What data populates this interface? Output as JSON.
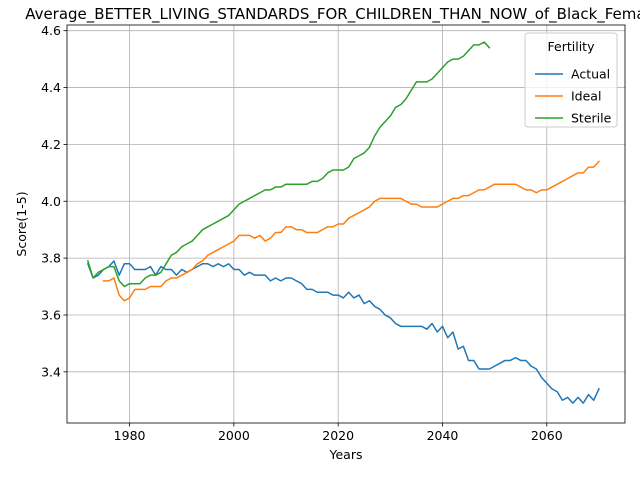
{
  "chart_data": {
    "type": "line",
    "title": "Average_BETTER_LIVING_STANDARDS_FOR_CHILDREN_THAN_NOW_of_Black_Females",
    "xlabel": "Years",
    "ylabel": "Score(1-5)",
    "xlim": [
      1968,
      2075
    ],
    "ylim": [
      3.22,
      4.62
    ],
    "xticks": [
      1980,
      2000,
      2020,
      2040,
      2060
    ],
    "yticks": [
      3.4,
      3.6,
      3.8,
      4.0,
      4.2,
      4.4,
      4.6
    ],
    "grid": true,
    "legend": {
      "title": "Fertility",
      "placement": "upper-right"
    },
    "series": [
      {
        "name": "Actual",
        "color": "#1f77b4",
        "points": [
          [
            1972,
            3.78
          ],
          [
            1973,
            3.73
          ],
          [
            1974,
            3.74
          ],
          [
            1975,
            3.76
          ],
          [
            1976,
            3.77
          ],
          [
            1977,
            3.79
          ],
          [
            1978,
            3.74
          ],
          [
            1979,
            3.78
          ],
          [
            1980,
            3.78
          ],
          [
            1981,
            3.76
          ],
          [
            1982,
            3.76
          ],
          [
            1983,
            3.76
          ],
          [
            1984,
            3.77
          ],
          [
            1985,
            3.74
          ],
          [
            1986,
            3.77
          ],
          [
            1987,
            3.76
          ],
          [
            1988,
            3.76
          ],
          [
            1989,
            3.74
          ],
          [
            1990,
            3.76
          ],
          [
            1991,
            3.75
          ],
          [
            1992,
            3.76
          ],
          [
            1993,
            3.77
          ],
          [
            1994,
            3.78
          ],
          [
            1995,
            3.78
          ],
          [
            1996,
            3.77
          ],
          [
            1997,
            3.78
          ],
          [
            1998,
            3.77
          ],
          [
            1999,
            3.78
          ],
          [
            2000,
            3.76
          ],
          [
            2001,
            3.76
          ],
          [
            2002,
            3.74
          ],
          [
            2003,
            3.75
          ],
          [
            2004,
            3.74
          ],
          [
            2005,
            3.74
          ],
          [
            2006,
            3.74
          ],
          [
            2007,
            3.72
          ],
          [
            2008,
            3.73
          ],
          [
            2009,
            3.72
          ],
          [
            2010,
            3.73
          ],
          [
            2011,
            3.73
          ],
          [
            2012,
            3.72
          ],
          [
            2013,
            3.71
          ],
          [
            2014,
            3.69
          ],
          [
            2015,
            3.69
          ],
          [
            2016,
            3.68
          ],
          [
            2017,
            3.68
          ],
          [
            2018,
            3.68
          ],
          [
            2019,
            3.67
          ],
          [
            2020,
            3.67
          ],
          [
            2021,
            3.66
          ],
          [
            2022,
            3.68
          ],
          [
            2023,
            3.66
          ],
          [
            2024,
            3.67
          ],
          [
            2025,
            3.64
          ],
          [
            2026,
            3.65
          ],
          [
            2027,
            3.63
          ],
          [
            2028,
            3.62
          ],
          [
            2029,
            3.6
          ],
          [
            2030,
            3.59
          ],
          [
            2031,
            3.57
          ],
          [
            2032,
            3.56
          ],
          [
            2033,
            3.56
          ],
          [
            2034,
            3.56
          ],
          [
            2035,
            3.56
          ],
          [
            2036,
            3.56
          ],
          [
            2037,
            3.55
          ],
          [
            2038,
            3.57
          ],
          [
            2039,
            3.54
          ],
          [
            2040,
            3.56
          ],
          [
            2041,
            3.52
          ],
          [
            2042,
            3.54
          ],
          [
            2043,
            3.48
          ],
          [
            2044,
            3.49
          ],
          [
            2045,
            3.44
          ],
          [
            2046,
            3.44
          ],
          [
            2047,
            3.41
          ],
          [
            2048,
            3.41
          ],
          [
            2049,
            3.41
          ],
          [
            2050,
            3.42
          ],
          [
            2051,
            3.43
          ],
          [
            2052,
            3.44
          ],
          [
            2053,
            3.44
          ],
          [
            2054,
            3.45
          ],
          [
            2055,
            3.44
          ],
          [
            2056,
            3.44
          ],
          [
            2057,
            3.42
          ],
          [
            2058,
            3.41
          ],
          [
            2059,
            3.38
          ],
          [
            2060,
            3.36
          ],
          [
            2061,
            3.34
          ],
          [
            2062,
            3.33
          ],
          [
            2063,
            3.3
          ],
          [
            2064,
            3.31
          ],
          [
            2065,
            3.29
          ],
          [
            2066,
            3.31
          ],
          [
            2067,
            3.29
          ],
          [
            2068,
            3.32
          ],
          [
            2069,
            3.3
          ],
          [
            2070,
            3.34
          ]
        ]
      },
      {
        "name": "Ideal",
        "color": "#ff7f0e",
        "points": [
          [
            1975,
            3.72
          ],
          [
            1976,
            3.72
          ],
          [
            1977,
            3.73
          ],
          [
            1978,
            3.67
          ],
          [
            1979,
            3.65
          ],
          [
            1980,
            3.66
          ],
          [
            1981,
            3.69
          ],
          [
            1982,
            3.69
          ],
          [
            1983,
            3.69
          ],
          [
            1984,
            3.7
          ],
          [
            1985,
            3.7
          ],
          [
            1986,
            3.7
          ],
          [
            1987,
            3.72
          ],
          [
            1988,
            3.73
          ],
          [
            1989,
            3.73
          ],
          [
            1990,
            3.74
          ],
          [
            1991,
            3.75
          ],
          [
            1992,
            3.76
          ],
          [
            1993,
            3.78
          ],
          [
            1994,
            3.79
          ],
          [
            1995,
            3.81
          ],
          [
            1996,
            3.82
          ],
          [
            1997,
            3.83
          ],
          [
            1998,
            3.84
          ],
          [
            1999,
            3.85
          ],
          [
            2000,
            3.86
          ],
          [
            2001,
            3.88
          ],
          [
            2002,
            3.88
          ],
          [
            2003,
            3.88
          ],
          [
            2004,
            3.87
          ],
          [
            2005,
            3.88
          ],
          [
            2006,
            3.86
          ],
          [
            2007,
            3.87
          ],
          [
            2008,
            3.89
          ],
          [
            2009,
            3.89
          ],
          [
            2010,
            3.91
          ],
          [
            2011,
            3.91
          ],
          [
            2012,
            3.9
          ],
          [
            2013,
            3.9
          ],
          [
            2014,
            3.89
          ],
          [
            2015,
            3.89
          ],
          [
            2016,
            3.89
          ],
          [
            2017,
            3.9
          ],
          [
            2018,
            3.91
          ],
          [
            2019,
            3.91
          ],
          [
            2020,
            3.92
          ],
          [
            2021,
            3.92
          ],
          [
            2022,
            3.94
          ],
          [
            2023,
            3.95
          ],
          [
            2024,
            3.96
          ],
          [
            2025,
            3.97
          ],
          [
            2026,
            3.98
          ],
          [
            2027,
            4.0
          ],
          [
            2028,
            4.01
          ],
          [
            2029,
            4.01
          ],
          [
            2030,
            4.01
          ],
          [
            2031,
            4.01
          ],
          [
            2032,
            4.01
          ],
          [
            2033,
            4.0
          ],
          [
            2034,
            3.99
          ],
          [
            2035,
            3.99
          ],
          [
            2036,
            3.98
          ],
          [
            2037,
            3.98
          ],
          [
            2038,
            3.98
          ],
          [
            2039,
            3.98
          ],
          [
            2040,
            3.99
          ],
          [
            2041,
            4.0
          ],
          [
            2042,
            4.01
          ],
          [
            2043,
            4.01
          ],
          [
            2044,
            4.02
          ],
          [
            2045,
            4.02
          ],
          [
            2046,
            4.03
          ],
          [
            2047,
            4.04
          ],
          [
            2048,
            4.04
          ],
          [
            2049,
            4.05
          ],
          [
            2050,
            4.06
          ],
          [
            2051,
            4.06
          ],
          [
            2052,
            4.06
          ],
          [
            2053,
            4.06
          ],
          [
            2054,
            4.06
          ],
          [
            2055,
            4.05
          ],
          [
            2056,
            4.04
          ],
          [
            2057,
            4.04
          ],
          [
            2058,
            4.03
          ],
          [
            2059,
            4.04
          ],
          [
            2060,
            4.04
          ],
          [
            2061,
            4.05
          ],
          [
            2062,
            4.06
          ],
          [
            2063,
            4.07
          ],
          [
            2064,
            4.08
          ],
          [
            2065,
            4.09
          ],
          [
            2066,
            4.1
          ],
          [
            2067,
            4.1
          ],
          [
            2068,
            4.12
          ],
          [
            2069,
            4.12
          ],
          [
            2070,
            4.14
          ]
        ]
      },
      {
        "name": "Sterile",
        "color": "#2ca02c",
        "points": [
          [
            1972,
            3.79
          ],
          [
            1973,
            3.73
          ],
          [
            1974,
            3.75
          ],
          [
            1975,
            3.76
          ],
          [
            1976,
            3.77
          ],
          [
            1977,
            3.77
          ],
          [
            1978,
            3.72
          ],
          [
            1979,
            3.7
          ],
          [
            1980,
            3.71
          ],
          [
            1981,
            3.71
          ],
          [
            1982,
            3.71
          ],
          [
            1983,
            3.73
          ],
          [
            1984,
            3.74
          ],
          [
            1985,
            3.74
          ],
          [
            1986,
            3.75
          ],
          [
            1987,
            3.78
          ],
          [
            1988,
            3.81
          ],
          [
            1989,
            3.82
          ],
          [
            1990,
            3.84
          ],
          [
            1991,
            3.85
          ],
          [
            1992,
            3.86
          ],
          [
            1993,
            3.88
          ],
          [
            1994,
            3.9
          ],
          [
            1995,
            3.91
          ],
          [
            1996,
            3.92
          ],
          [
            1997,
            3.93
          ],
          [
            1998,
            3.94
          ],
          [
            1999,
            3.95
          ],
          [
            2000,
            3.97
          ],
          [
            2001,
            3.99
          ],
          [
            2002,
            4.0
          ],
          [
            2003,
            4.01
          ],
          [
            2004,
            4.02
          ],
          [
            2005,
            4.03
          ],
          [
            2006,
            4.04
          ],
          [
            2007,
            4.04
          ],
          [
            2008,
            4.05
          ],
          [
            2009,
            4.05
          ],
          [
            2010,
            4.06
          ],
          [
            2011,
            4.06
          ],
          [
            2012,
            4.06
          ],
          [
            2013,
            4.06
          ],
          [
            2014,
            4.06
          ],
          [
            2015,
            4.07
          ],
          [
            2016,
            4.07
          ],
          [
            2017,
            4.08
          ],
          [
            2018,
            4.1
          ],
          [
            2019,
            4.11
          ],
          [
            2020,
            4.11
          ],
          [
            2021,
            4.11
          ],
          [
            2022,
            4.12
          ],
          [
            2023,
            4.15
          ],
          [
            2024,
            4.16
          ],
          [
            2025,
            4.17
          ],
          [
            2026,
            4.19
          ],
          [
            2027,
            4.23
          ],
          [
            2028,
            4.26
          ],
          [
            2029,
            4.28
          ],
          [
            2030,
            4.3
          ],
          [
            2031,
            4.33
          ],
          [
            2032,
            4.34
          ],
          [
            2033,
            4.36
          ],
          [
            2034,
            4.39
          ],
          [
            2035,
            4.42
          ],
          [
            2036,
            4.42
          ],
          [
            2037,
            4.42
          ],
          [
            2038,
            4.43
          ],
          [
            2039,
            4.45
          ],
          [
            2040,
            4.47
          ],
          [
            2041,
            4.49
          ],
          [
            2042,
            4.5
          ],
          [
            2043,
            4.5
          ],
          [
            2044,
            4.51
          ],
          [
            2045,
            4.53
          ],
          [
            2046,
            4.55
          ],
          [
            2047,
            4.55
          ],
          [
            2048,
            4.56
          ],
          [
            2049,
            4.54
          ]
        ]
      }
    ]
  }
}
